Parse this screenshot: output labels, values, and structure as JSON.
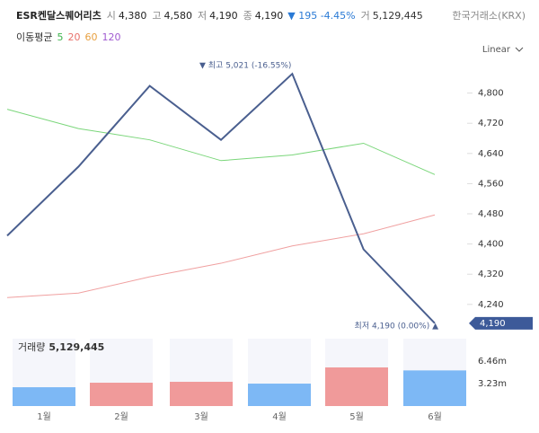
{
  "header": {
    "name": "ESR켄달스퀘어리츠",
    "quote": [
      {
        "label": "시",
        "value": "4,380"
      },
      {
        "label": "고",
        "value": "4,580"
      },
      {
        "label": "저",
        "value": "4,190"
      },
      {
        "label": "종",
        "value": "4,190"
      }
    ],
    "change": "▼ 195 -4.45%",
    "volume_label": "거",
    "volume": "5,129,445",
    "exchange": "한국거래소(KRX)",
    "ma_label": "이동평균",
    "ma": [
      {
        "label": "5",
        "color": "#3cb44b"
      },
      {
        "label": "20",
        "color": "#e8706a"
      },
      {
        "label": "60",
        "color": "#e8a040"
      },
      {
        "label": "120",
        "color": "#a05ad0"
      }
    ],
    "scale": "Linear"
  },
  "chart_data": [
    {
      "type": "line",
      "categories": [
        null,
        null,
        null,
        null,
        null,
        null,
        null
      ],
      "series": [
        {
          "name": "종가",
          "color": "#4a5f8f",
          "values": [
            4422,
            4605,
            4819,
            4676,
            4851,
            4386,
            4190
          ]
        },
        {
          "name": "5",
          "color": "#7ad67a",
          "values": [
            4757,
            4706,
            4676,
            4621,
            4636,
            4667,
            4584
          ]
        },
        {
          "name": "20",
          "color": "#f0a0a0",
          "values": [
            4258,
            4270,
            4313,
            4349,
            4395,
            4427,
            4477
          ]
        }
      ],
      "ylim": [
        4142,
        4880
      ],
      "yticks": [
        {
          "value": 4240,
          "label": "4,240"
        },
        {
          "value": 4320,
          "label": "4,320"
        },
        {
          "value": 4400,
          "label": "4,400"
        },
        {
          "value": 4480,
          "label": "4,480"
        },
        {
          "value": 4560,
          "label": "4,560"
        },
        {
          "value": 4640,
          "label": "4,640"
        },
        {
          "value": 4720,
          "label": "4,720"
        },
        {
          "value": 4800,
          "label": "4,800"
        }
      ],
      "annotations": [
        "▼ 최고 5,021 (-16.55%)",
        "최저 4,190 (0.00%) ▲"
      ],
      "last_price": {
        "value": 4190,
        "label": "4,190"
      }
    },
    {
      "type": "bar",
      "title": "거래량",
      "title_value": "5,129,445",
      "categories": [
        "1월",
        "2월",
        "3월",
        "4월",
        "5월",
        "6월"
      ],
      "values": [
        2.71,
        3.36,
        3.49,
        3.23,
        5.56,
        5.129445
      ],
      "colors": [
        "#7db8f5",
        "#f09a9a",
        "#f09a9a",
        "#7db8f5",
        "#f09a9a",
        "#7db8f5"
      ],
      "ylim": [
        0,
        9.7
      ],
      "yticks": [
        {
          "value": 3.23,
          "label": "3.23m"
        },
        {
          "value": 6.46,
          "label": "6.46m"
        }
      ]
    }
  ]
}
